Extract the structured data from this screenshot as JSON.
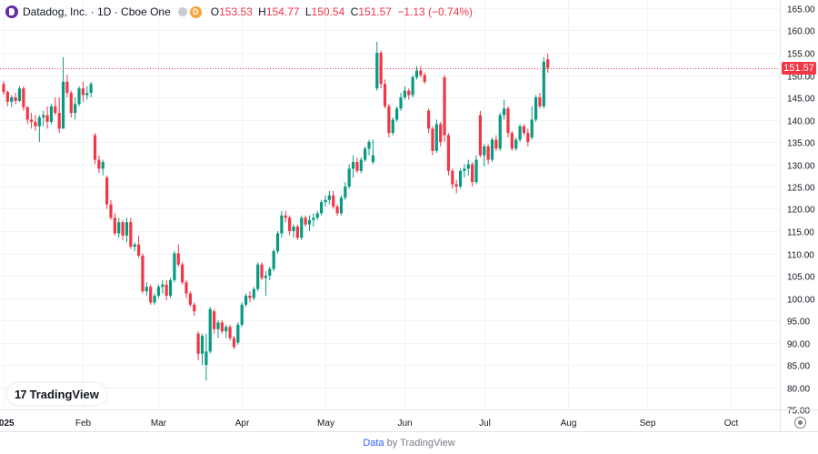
{
  "legend": {
    "symbol": "Datadog, Inc. · 1D · Cboe One",
    "open_label": "O",
    "open": "153.53",
    "high_label": "H",
    "high": "154.77",
    "low_label": "L",
    "low": "150.54",
    "close_label": "C",
    "close": "151.57",
    "change": "−1.13 (−0.74%)",
    "badge": "D"
  },
  "last_price_tag": "151.57",
  "logo_text": "TradingView",
  "footer": {
    "source": "Data",
    "by": "by TradingView"
  },
  "colors": {
    "up": "#089981",
    "down": "#f23645",
    "grid": "#f0f3fa",
    "text": "#131722",
    "axis_text": "#131722"
  },
  "chart_data": {
    "type": "candlestick",
    "title": "Datadog, Inc. · 1D · Cboe One",
    "ylim": [
      75,
      165
    ],
    "y_ticks": [
      "165.00",
      "160.00",
      "155.00",
      "150.00",
      "145.00",
      "140.00",
      "135.00",
      "130.00",
      "125.00",
      "120.00",
      "115.00",
      "110.00",
      "105.00",
      "100.00",
      "95.00",
      "90.00",
      "85.00",
      "80.00",
      "75.00"
    ],
    "x_ticks": [
      {
        "label": "2025",
        "index": 0
      },
      {
        "label": "Feb",
        "index": 20
      },
      {
        "label": "Mar",
        "index": 39
      },
      {
        "label": "Apr",
        "index": 60
      },
      {
        "label": "May",
        "index": 81
      },
      {
        "label": "Jun",
        "index": 101
      },
      {
        "label": "Jul",
        "index": 121
      },
      {
        "label": "Aug",
        "index": 142
      },
      {
        "label": "Sep",
        "index": 162
      },
      {
        "label": "Oct",
        "index": 183
      }
    ],
    "last_price": 151.57,
    "candles": [
      [
        148.0,
        148.6,
        145.5,
        146.2
      ],
      [
        146.2,
        146.5,
        143.0,
        144.0
      ],
      [
        144.0,
        145.5,
        142.8,
        145.0
      ],
      [
        145.0,
        146.0,
        143.5,
        144.2
      ],
      [
        144.2,
        147.5,
        144.0,
        147.0
      ],
      [
        147.0,
        147.5,
        142.0,
        142.8
      ],
      [
        142.8,
        143.0,
        139.0,
        140.0
      ],
      [
        140.0,
        141.5,
        138.0,
        139.5
      ],
      [
        139.5,
        141.0,
        137.5,
        138.5
      ],
      [
        138.5,
        141.0,
        135.0,
        140.5
      ],
      [
        140.5,
        142.0,
        138.5,
        141.0
      ],
      [
        141.0,
        143.0,
        138.0,
        139.5
      ],
      [
        139.5,
        143.5,
        139.0,
        143.0
      ],
      [
        143.0,
        145.0,
        141.0,
        141.5
      ],
      [
        141.5,
        145.0,
        137.0,
        138.0
      ],
      [
        138.0,
        154.0,
        138.0,
        148.5
      ],
      [
        148.5,
        150.0,
        145.0,
        146.0
      ],
      [
        146.0,
        146.5,
        140.5,
        141.5
      ],
      [
        141.5,
        145.0,
        140.0,
        143.5
      ],
      [
        143.5,
        147.5,
        143.0,
        147.0
      ],
      [
        147.0,
        148.5,
        144.0,
        145.5
      ],
      [
        145.5,
        147.5,
        144.5,
        146.0
      ],
      [
        146.0,
        148.5,
        145.0,
        148.0
      ],
      [
        136.5,
        137.0,
        130.0,
        131.0
      ],
      [
        131.0,
        132.0,
        128.0,
        129.0
      ],
      [
        129.0,
        131.0,
        127.5,
        130.5
      ],
      [
        127.0,
        127.5,
        120.0,
        121.0
      ],
      [
        121.0,
        122.0,
        117.5,
        118.0
      ],
      [
        118.0,
        119.0,
        114.0,
        114.5
      ],
      [
        114.5,
        118.0,
        113.5,
        117.0
      ],
      [
        117.0,
        117.5,
        113.0,
        114.0
      ],
      [
        114.0,
        118.0,
        112.5,
        117.0
      ],
      [
        117.0,
        118.0,
        111.0,
        111.5
      ],
      [
        111.5,
        112.5,
        110.5,
        112.0
      ],
      [
        112.0,
        114.0,
        109.0,
        109.5
      ],
      [
        109.5,
        110.0,
        101.0,
        101.5
      ],
      [
        101.5,
        103.5,
        100.5,
        102.5
      ],
      [
        102.5,
        103.0,
        98.5,
        99.0
      ],
      [
        99.0,
        101.0,
        98.5,
        100.5
      ],
      [
        100.5,
        103.0,
        100.0,
        102.5
      ],
      [
        102.5,
        104.0,
        101.0,
        103.0
      ],
      [
        103.0,
        104.0,
        99.5,
        100.5
      ],
      [
        100.5,
        104.5,
        100.0,
        104.0
      ],
      [
        104.0,
        110.5,
        103.5,
        110.0
      ],
      [
        110.0,
        112.0,
        107.0,
        107.5
      ],
      [
        107.5,
        108.0,
        103.0,
        103.5
      ],
      [
        103.5,
        104.0,
        100.0,
        101.0
      ],
      [
        101.0,
        101.5,
        98.0,
        98.5
      ],
      [
        98.5,
        99.0,
        96.0,
        97.0
      ],
      [
        92.0,
        92.5,
        86.0,
        87.5
      ],
      [
        87.5,
        92.0,
        85.0,
        91.5
      ],
      [
        85.0,
        92.0,
        81.5,
        88.0
      ],
      [
        88.0,
        98.0,
        87.5,
        97.5
      ],
      [
        97.0,
        97.5,
        92.0,
        93.0
      ],
      [
        93.0,
        95.0,
        91.0,
        94.5
      ],
      [
        94.5,
        95.0,
        92.0,
        92.5
      ],
      [
        92.5,
        94.0,
        91.0,
        93.5
      ],
      [
        93.5,
        94.0,
        90.5,
        91.0
      ],
      [
        91.0,
        91.5,
        88.5,
        89.0
      ],
      [
        90.0,
        94.5,
        89.5,
        94.0
      ],
      [
        94.0,
        99.0,
        93.5,
        98.5
      ],
      [
        98.5,
        101.0,
        98.0,
        100.5
      ],
      [
        100.5,
        101.5,
        99.0,
        100.0
      ],
      [
        100.0,
        102.5,
        99.5,
        102.0
      ],
      [
        102.0,
        108.0,
        101.5,
        107.5
      ],
      [
        107.5,
        108.0,
        104.0,
        104.5
      ],
      [
        104.5,
        106.0,
        100.5,
        105.0
      ],
      [
        105.0,
        107.0,
        104.0,
        106.5
      ],
      [
        106.5,
        111.0,
        106.0,
        110.5
      ],
      [
        110.5,
        115.0,
        110.0,
        114.5
      ],
      [
        114.5,
        119.5,
        113.5,
        118.5
      ],
      [
        118.5,
        119.5,
        117.0,
        118.0
      ],
      [
        118.0,
        118.5,
        114.0,
        115.0
      ],
      [
        115.0,
        116.5,
        113.5,
        116.0
      ],
      [
        116.0,
        116.5,
        113.0,
        113.5
      ],
      [
        113.5,
        118.5,
        113.0,
        118.0
      ],
      [
        118.0,
        118.5,
        116.0,
        116.5
      ],
      [
        116.5,
        118.5,
        115.0,
        117.5
      ],
      [
        117.5,
        119.0,
        116.0,
        118.0
      ],
      [
        118.0,
        119.5,
        117.5,
        119.0
      ],
      [
        119.0,
        122.0,
        118.5,
        121.5
      ],
      [
        121.5,
        123.0,
        120.5,
        122.0
      ],
      [
        122.0,
        124.0,
        121.0,
        123.0
      ],
      [
        123.0,
        124.0,
        120.0,
        120.5
      ],
      [
        120.5,
        121.0,
        118.5,
        119.0
      ],
      [
        119.0,
        123.0,
        118.5,
        122.5
      ],
      [
        122.5,
        126.0,
        122.0,
        125.0
      ],
      [
        125.0,
        130.0,
        124.5,
        129.0
      ],
      [
        129.0,
        132.0,
        127.0,
        130.5
      ],
      [
        130.5,
        131.5,
        128.0,
        128.5
      ],
      [
        128.5,
        131.5,
        128.0,
        131.0
      ],
      [
        131.0,
        134.0,
        130.5,
        133.5
      ],
      [
        133.5,
        135.5,
        132.0,
        135.0
      ],
      [
        130.5,
        135.5,
        130.0,
        132.0
      ],
      [
        147.0,
        157.5,
        146.5,
        155.0
      ],
      [
        155.0,
        155.5,
        147.0,
        148.0
      ],
      [
        148.0,
        149.0,
        142.5,
        143.0
      ],
      [
        143.0,
        143.5,
        136.0,
        137.0
      ],
      [
        137.0,
        140.5,
        136.5,
        140.0
      ],
      [
        140.0,
        143.0,
        139.5,
        142.5
      ],
      [
        142.5,
        146.0,
        142.0,
        145.0
      ],
      [
        145.0,
        147.5,
        144.5,
        146.5
      ],
      [
        146.5,
        147.0,
        144.5,
        145.5
      ],
      [
        145.5,
        150.0,
        145.0,
        149.5
      ],
      [
        149.5,
        152.0,
        149.0,
        151.0
      ],
      [
        151.0,
        152.0,
        149.5,
        150.0
      ],
      [
        150.0,
        150.5,
        148.0,
        148.5
      ],
      [
        142.0,
        142.5,
        137.0,
        138.0
      ],
      [
        138.0,
        138.5,
        132.0,
        133.0
      ],
      [
        133.0,
        140.0,
        132.5,
        139.0
      ],
      [
        139.0,
        139.5,
        134.0,
        135.0
      ],
      [
        149.5,
        150.0,
        135.0,
        136.5
      ],
      [
        136.5,
        137.0,
        127.5,
        128.5
      ],
      [
        128.5,
        129.0,
        124.5,
        125.5
      ],
      [
        125.5,
        126.5,
        123.5,
        125.0
      ],
      [
        125.0,
        129.0,
        124.5,
        128.5
      ],
      [
        128.5,
        130.0,
        127.0,
        129.0
      ],
      [
        129.0,
        131.0,
        127.5,
        130.0
      ],
      [
        130.0,
        130.5,
        125.0,
        126.0
      ],
      [
        126.0,
        132.0,
        125.5,
        131.0
      ],
      [
        141.0,
        142.0,
        131.5,
        132.0
      ],
      [
        132.0,
        134.5,
        129.5,
        134.0
      ],
      [
        134.0,
        134.5,
        130.0,
        131.0
      ],
      [
        131.0,
        136.0,
        130.5,
        135.5
      ],
      [
        135.5,
        136.5,
        133.0,
        133.5
      ],
      [
        133.5,
        141.5,
        133.0,
        141.0
      ],
      [
        141.0,
        144.5,
        140.0,
        142.5
      ],
      [
        142.5,
        143.0,
        136.0,
        137.0
      ],
      [
        137.0,
        137.5,
        133.0,
        133.5
      ],
      [
        133.5,
        136.0,
        133.0,
        135.5
      ],
      [
        135.5,
        139.0,
        135.0,
        138.5
      ],
      [
        138.5,
        139.0,
        136.5,
        137.0
      ],
      [
        137.0,
        138.0,
        134.0,
        135.0
      ],
      [
        136.0,
        143.0,
        135.5,
        140.0
      ],
      [
        140.0,
        145.5,
        139.5,
        145.0
      ],
      [
        145.0,
        146.0,
        142.5,
        143.0
      ],
      [
        143.0,
        154.0,
        142.5,
        153.0
      ],
      [
        153.5,
        154.8,
        150.5,
        151.6
      ]
    ]
  }
}
